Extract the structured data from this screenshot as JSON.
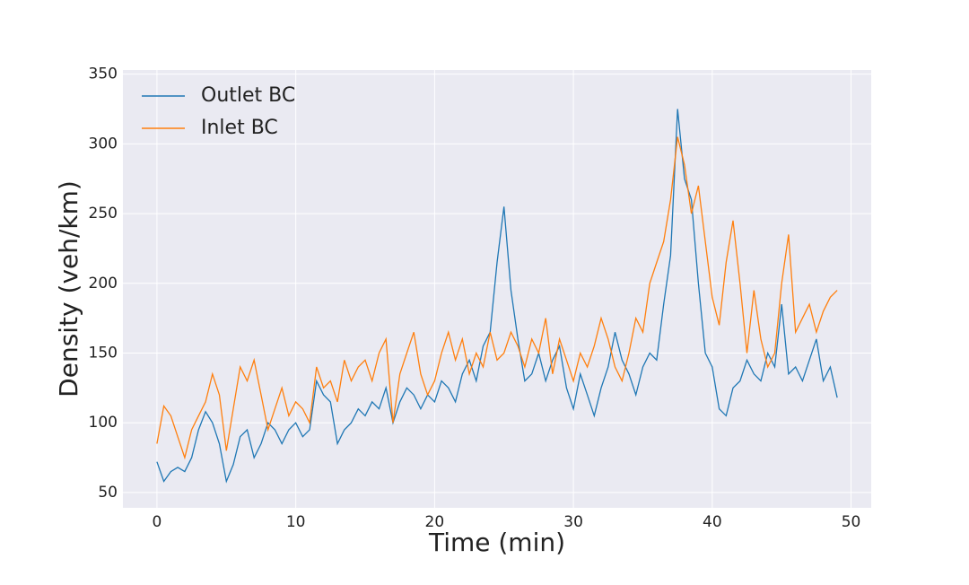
{
  "chart_data": {
    "type": "line",
    "xlabel": "Time (min)",
    "ylabel": "Density (veh/km)",
    "x": [
      0,
      0.5,
      1,
      1.5,
      2,
      2.5,
      3,
      3.5,
      4,
      4.5,
      5,
      5.5,
      6,
      6.5,
      7,
      7.5,
      8,
      8.5,
      9,
      9.5,
      10,
      10.5,
      11,
      11.5,
      12,
      12.5,
      13,
      13.5,
      14,
      14.5,
      15,
      15.5,
      16,
      16.5,
      17,
      17.5,
      18,
      18.5,
      19,
      19.5,
      20,
      20.5,
      21,
      21.5,
      22,
      22.5,
      23,
      23.5,
      24,
      24.5,
      25,
      25.5,
      26,
      26.5,
      27,
      27.5,
      28,
      28.5,
      29,
      29.5,
      30,
      30.5,
      31,
      31.5,
      32,
      32.5,
      33,
      33.5,
      34,
      34.5,
      35,
      35.5,
      36,
      36.5,
      37,
      37.5,
      38,
      38.5,
      39,
      39.5,
      40,
      40.5,
      41,
      41.5,
      42,
      42.5,
      43,
      43.5,
      44,
      44.5,
      45,
      45.5,
      46,
      46.5,
      47,
      47.5,
      48,
      48.5,
      49
    ],
    "series": [
      {
        "name": "Outlet BC",
        "color": "#1f77b4",
        "values": [
          72,
          58,
          65,
          68,
          65,
          75,
          95,
          108,
          100,
          85,
          58,
          70,
          90,
          95,
          75,
          85,
          100,
          95,
          85,
          95,
          100,
          90,
          95,
          130,
          120,
          115,
          85,
          95,
          100,
          110,
          105,
          115,
          110,
          125,
          100,
          115,
          125,
          120,
          110,
          120,
          115,
          130,
          125,
          115,
          135,
          145,
          130,
          155,
          165,
          215,
          255,
          195,
          160,
          130,
          135,
          150,
          130,
          145,
          155,
          125,
          110,
          135,
          120,
          105,
          125,
          140,
          165,
          145,
          135,
          120,
          140,
          150,
          145,
          185,
          220,
          325,
          275,
          260,
          200,
          150,
          140,
          110,
          105,
          125,
          130,
          145,
          135,
          130,
          150,
          140,
          185,
          135,
          140,
          130,
          145,
          160,
          130,
          140,
          118
        ]
      },
      {
        "name": "Inlet BC",
        "color": "#ff7f0e",
        "values": [
          85,
          112,
          105,
          90,
          75,
          95,
          105,
          115,
          135,
          120,
          80,
          110,
          140,
          130,
          145,
          120,
          95,
          110,
          125,
          105,
          115,
          110,
          100,
          140,
          125,
          130,
          115,
          145,
          130,
          140,
          145,
          130,
          150,
          160,
          100,
          135,
          150,
          165,
          135,
          120,
          130,
          150,
          165,
          145,
          160,
          135,
          150,
          140,
          165,
          145,
          150,
          165,
          155,
          140,
          160,
          150,
          175,
          135,
          160,
          145,
          130,
          150,
          140,
          155,
          175,
          160,
          140,
          130,
          150,
          175,
          165,
          200,
          215,
          230,
          260,
          305,
          285,
          250,
          270,
          230,
          190,
          170,
          215,
          245,
          200,
          150,
          195,
          160,
          140,
          150,
          200,
          235,
          165,
          175,
          185,
          165,
          180,
          190,
          195
        ]
      }
    ],
    "xlim": [
      -2.45,
      51.45
    ],
    "ylim": [
      39,
      353
    ],
    "xticks": [
      0,
      10,
      20,
      30,
      40,
      50
    ],
    "yticks": [
      50,
      100,
      150,
      200,
      250,
      300,
      350
    ],
    "grid": true,
    "legend": "upper left"
  }
}
